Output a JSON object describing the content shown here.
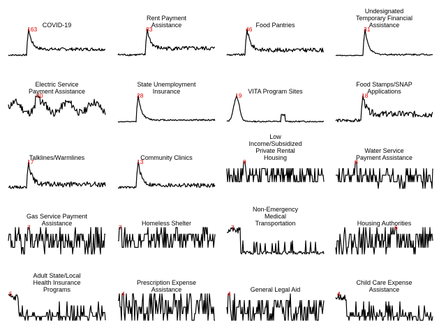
{
  "chart_data": [
    {
      "type": "line",
      "title": "COVID-19",
      "peak_label": "163",
      "shape": "spike",
      "peak_pos": 0.21,
      "noise": 0.06,
      "tail": 0.25
    },
    {
      "type": "line",
      "title": "Rent Payment\nAssistance",
      "peak_label": "83",
      "shape": "spike",
      "peak_pos": 0.3,
      "noise": 0.08,
      "tail": 0.28
    },
    {
      "type": "line",
      "title": "Food Pantries",
      "peak_label": "46",
      "shape": "spike",
      "peak_pos": 0.21,
      "noise": 0.08,
      "tail": 0.22
    },
    {
      "type": "line",
      "title": "Undesignated\nTemporary Financial\nAssistance",
      "peak_label": "31",
      "shape": "spike",
      "peak_pos": 0.3,
      "noise": 0.03,
      "tail": 0.05
    },
    {
      "type": "line",
      "title": "Electric Service\nPayment Assistance",
      "peak_label": "30",
      "shape": "wave",
      "peak_pos": 0.3,
      "noise": 0.14,
      "tail": 0.55
    },
    {
      "type": "line",
      "title": "State Unemployment\nInsurance",
      "peak_label": "28",
      "shape": "spike",
      "peak_pos": 0.21,
      "noise": 0.03,
      "tail": 0.08
    },
    {
      "type": "line",
      "title": "VITA Program Sites",
      "peak_label": "19",
      "shape": "hump",
      "peak_pos": 0.1,
      "noise": 0.05,
      "tail": 0.04
    },
    {
      "type": "line",
      "title": "Food Stamps/SNAP\nApplications",
      "peak_label": "18",
      "shape": "spike",
      "peak_pos": 0.28,
      "noise": 0.12,
      "tail": 0.3
    },
    {
      "type": "line",
      "title": "Talklines/Warmlines",
      "peak_label": "17",
      "shape": "spike",
      "peak_pos": 0.21,
      "noise": 0.1,
      "tail": 0.15
    },
    {
      "type": "line",
      "title": "Community Clinics",
      "peak_label": "13",
      "shape": "spike",
      "peak_pos": 0.21,
      "noise": 0.08,
      "tail": 0.12
    },
    {
      "type": "line",
      "title": "Low\nIncome/Subsidized\nPrivate Rental\nHousing",
      "peak_label": "9",
      "shape": "step",
      "peak_pos": 0.18,
      "noise": 0.35,
      "tail": 0.5
    },
    {
      "type": "line",
      "title": "Water Service\nPayment Assistance",
      "peak_label": "8",
      "shape": "step",
      "peak_pos": 0.21,
      "noise": 0.3,
      "tail": 0.4
    },
    {
      "type": "line",
      "title": "Gas Service Payment\nAssistance",
      "peak_label": "7",
      "shape": "step",
      "peak_pos": 0.21,
      "noise": 0.45,
      "tail": 0.5
    },
    {
      "type": "line",
      "title": "Homeless Shelter",
      "peak_label": "7",
      "shape": "step",
      "peak_pos": 0.02,
      "noise": 0.4,
      "tail": 0.55
    },
    {
      "type": "line",
      "title": "Non-Emergency\nMedical\nTransportation",
      "peak_label": "7",
      "shape": "drop",
      "peak_pos": 0.06,
      "noise": 0.2,
      "tail": 0.1
    },
    {
      "type": "line",
      "title": "Housing Authorities",
      "peak_label": "6",
      "shape": "step",
      "peak_pos": 0.62,
      "noise": 0.45,
      "tail": 0.5
    },
    {
      "type": "line",
      "title": "Adult State/Local\nHealth Insurance\nPrograms",
      "peak_label": "5",
      "shape": "drop",
      "peak_pos": 0.02,
      "noise": 0.4,
      "tail": 0.3
    },
    {
      "type": "line",
      "title": "Prescription Expense\nAssistance",
      "peak_label": "4",
      "shape": "step",
      "peak_pos": 0.05,
      "noise": 0.55,
      "tail": 0.5
    },
    {
      "type": "line",
      "title": "General Legal Aid",
      "peak_label": "4",
      "shape": "step",
      "peak_pos": 0.02,
      "noise": 0.5,
      "tail": 0.4
    },
    {
      "type": "line",
      "title": "Child Care Expense\nAssistance",
      "peak_label": "4",
      "shape": "drop",
      "peak_pos": 0.03,
      "noise": 0.45,
      "tail": 0.3
    }
  ]
}
